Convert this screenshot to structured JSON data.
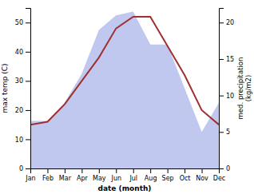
{
  "chart_data": {
    "type": "line",
    "xlabel": "date (month)",
    "ylabel": "max temp (C)",
    "y2label": "med. precipitation\n(kg/m2)",
    "categories": [
      "Jan",
      "Feb",
      "Mar",
      "Apr",
      "May",
      "Jun",
      "Jul",
      "Aug",
      "Sep",
      "Oct",
      "Nov",
      "Dec"
    ],
    "series": [
      {
        "type": "area",
        "color": "#c0c8f0",
        "axis": "y2",
        "values": [
          6.5,
          6.5,
          9,
          13,
          19,
          21,
          21.5,
          17,
          17,
          11,
          5,
          9
        ]
      },
      {
        "type": "line",
        "color": "#a03030",
        "values": [
          15,
          16,
          22,
          30,
          38,
          48,
          52,
          52,
          42,
          32,
          20,
          15
        ]
      }
    ],
    "ylim": [
      0,
      55
    ],
    "yticks": [
      0,
      10,
      20,
      30,
      40,
      50
    ],
    "y2lim": [
      0,
      22
    ],
    "y2ticks": [
      0,
      5,
      10,
      15,
      20
    ],
    "grid": false
  }
}
